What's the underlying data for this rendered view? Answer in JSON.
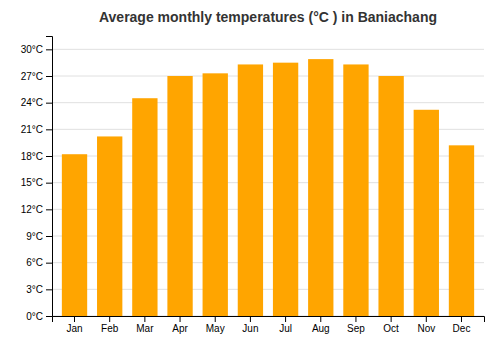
{
  "chart_data": {
    "type": "bar",
    "title": "Average monthly temperatures (°C ) in Baniachang",
    "categories": [
      "Jan",
      "Feb",
      "Mar",
      "Apr",
      "May",
      "Jun",
      "Jul",
      "Aug",
      "Sep",
      "Oct",
      "Nov",
      "Dec"
    ],
    "values": [
      18.2,
      20.2,
      24.5,
      27.0,
      27.3,
      28.3,
      28.5,
      28.9,
      28.3,
      27.0,
      23.2,
      19.2
    ],
    "color": "#FFA500",
    "ylim": [
      0,
      31.5
    ],
    "yticks": [
      {
        "value": 0,
        "label": "0°C"
      },
      {
        "value": 3,
        "label": "3°C"
      },
      {
        "value": 6,
        "label": "6°C"
      },
      {
        "value": 9,
        "label": "9°C"
      },
      {
        "value": 12,
        "label": "12°C"
      },
      {
        "value": 15,
        "label": "15°C"
      },
      {
        "value": 18,
        "label": "18°C"
      },
      {
        "value": 21,
        "label": "21°C"
      },
      {
        "value": 24,
        "label": "24°C"
      },
      {
        "value": 27,
        "label": "27°C"
      },
      {
        "value": 30,
        "label": "30°C"
      }
    ],
    "grid": true
  }
}
